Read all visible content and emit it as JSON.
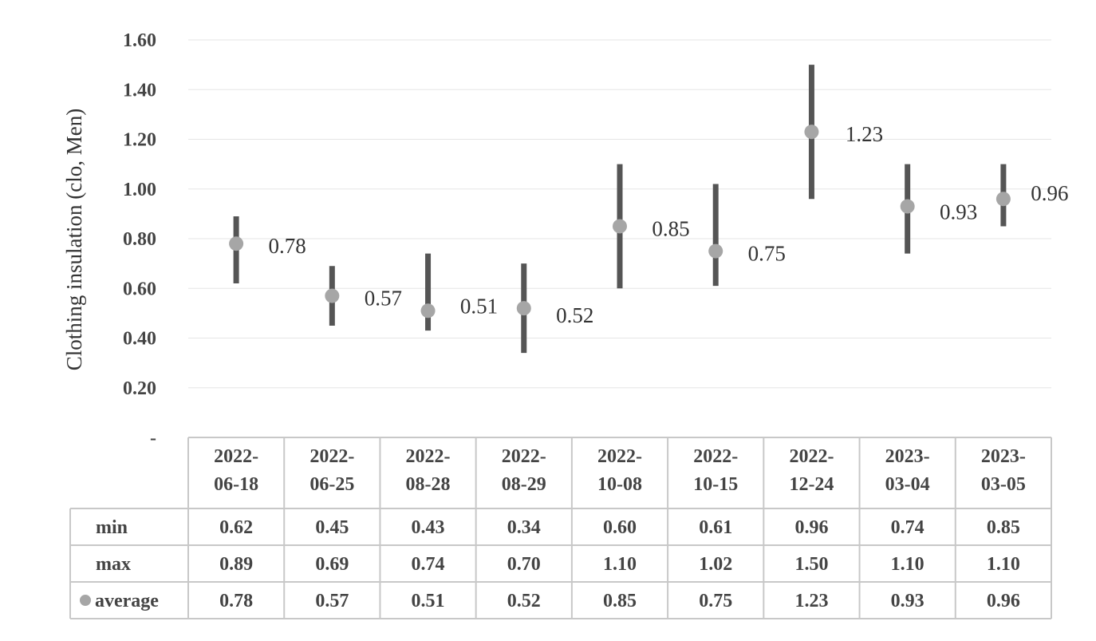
{
  "chart_data": {
    "type": "scatter",
    "ylabel": "Clothing insulation (clo, Men)",
    "ylim": [
      0,
      1.6
    ],
    "yticks": [
      {
        "value": 1.6,
        "label": "1.60"
      },
      {
        "value": 1.4,
        "label": "1.40"
      },
      {
        "value": 1.2,
        "label": "1.20"
      },
      {
        "value": 1.0,
        "label": "1.00"
      },
      {
        "value": 0.8,
        "label": "0.80"
      },
      {
        "value": 0.6,
        "label": "0.60"
      },
      {
        "value": 0.4,
        "label": "0.40"
      },
      {
        "value": 0.2,
        "label": "0.20"
      },
      {
        "value": 0.0,
        "label": "-"
      }
    ],
    "grid": true,
    "categories": [
      [
        "2022-",
        "06-18"
      ],
      [
        "2022-",
        "06-25"
      ],
      [
        "2022-",
        "08-28"
      ],
      [
        "2022-",
        "08-29"
      ],
      [
        "2022-",
        "10-08"
      ],
      [
        "2022-",
        "10-15"
      ],
      [
        "2022-",
        "12-24"
      ],
      [
        "2023-",
        "03-04"
      ],
      [
        "2023-",
        "03-05"
      ]
    ],
    "series": [
      {
        "name": "min",
        "values": [
          0.62,
          0.45,
          0.43,
          0.34,
          0.6,
          0.61,
          0.96,
          0.74,
          0.85
        ],
        "labels": [
          "0.62",
          "0.45",
          "0.43",
          "0.34",
          "0.60",
          "0.61",
          "0.96",
          "0.74",
          "0.85"
        ]
      },
      {
        "name": "max",
        "values": [
          0.89,
          0.69,
          0.74,
          0.7,
          1.1,
          1.02,
          1.5,
          1.1,
          1.1
        ],
        "labels": [
          "0.89",
          "0.69",
          "0.74",
          "0.70",
          "1.10",
          "1.02",
          "1.50",
          "1.10",
          "1.10"
        ]
      },
      {
        "name": "average",
        "values": [
          0.78,
          0.57,
          0.51,
          0.52,
          0.85,
          0.75,
          1.23,
          0.93,
          0.96
        ],
        "labels": [
          "0.78",
          "0.57",
          "0.51",
          "0.52",
          "0.85",
          "0.75",
          "1.23",
          "0.93",
          "0.96"
        ]
      }
    ],
    "data_table": true,
    "colors": {
      "bar": "#555555",
      "marker": "#a6a6a6",
      "grid": "#e6e6e6",
      "table_border": "#c8c8c8"
    }
  }
}
